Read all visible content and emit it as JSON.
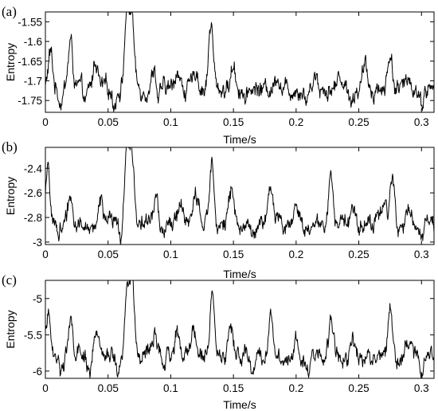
{
  "figure": {
    "background": "#ffffff",
    "line_color": "#000000"
  },
  "chart_data": [
    {
      "type": "line",
      "panel_label": "(a)",
      "xlabel": "Time/s",
      "ylabel": "Entropy",
      "xlim": [
        0,
        0.31
      ],
      "ylim": [
        -1.78,
        -1.525
      ],
      "xticks": [
        0,
        0.05,
        0.1,
        0.15,
        0.2,
        0.25,
        0.3
      ],
      "xtick_labels": [
        "0",
        "0.05",
        "0.1",
        "0.15",
        "0.2",
        "0.25",
        "0.3"
      ],
      "yticks": [
        -1.55,
        -1.6,
        -1.65,
        -1.7,
        -1.75
      ],
      "ytick_labels": [
        "-1.55",
        "-1.6",
        "-1.65",
        "-1.7",
        "-1.75"
      ],
      "grid": false,
      "baseline": -1.72,
      "noise_amplitude": 0.02,
      "peaks": [
        [
          0.004,
          -1.63
        ],
        [
          0.02,
          -1.6
        ],
        [
          0.04,
          -1.645
        ],
        [
          0.065,
          -1.525
        ],
        [
          0.069,
          -1.535
        ],
        [
          0.087,
          -1.66
        ],
        [
          0.105,
          -1.67
        ],
        [
          0.12,
          -1.67
        ],
        [
          0.132,
          -1.555
        ],
        [
          0.15,
          -1.66
        ],
        [
          0.185,
          -1.68
        ],
        [
          0.215,
          -1.68
        ],
        [
          0.235,
          -1.68
        ],
        [
          0.255,
          -1.665
        ],
        [
          0.275,
          -1.63
        ],
        [
          0.29,
          -1.685
        ]
      ],
      "troughs": [
        [
          0.012,
          -1.755
        ],
        [
          0.032,
          -1.765
        ],
        [
          0.055,
          -1.765
        ],
        [
          0.09,
          -1.77
        ],
        [
          0.16,
          -1.765
        ],
        [
          0.208,
          -1.755
        ],
        [
          0.245,
          -1.76
        ],
        [
          0.3,
          -1.765
        ]
      ]
    },
    {
      "type": "line",
      "panel_label": "(b)",
      "xlabel": "Time/s",
      "ylabel": "Entropy",
      "xlim": [
        0,
        0.31
      ],
      "ylim": [
        -3.02,
        -2.23
      ],
      "xticks": [
        0,
        0.05,
        0.1,
        0.15,
        0.2,
        0.25,
        0.3
      ],
      "xtick_labels": [
        "0",
        "0.05",
        "0.1",
        "0.15",
        "0.2",
        "0.25",
        "0.3"
      ],
      "yticks": [
        -2.4,
        -2.6,
        -2.8,
        -3
      ],
      "ytick_labels": [
        "-2.4",
        "-2.6",
        "-2.8",
        "-3"
      ],
      "grid": false,
      "baseline": -2.85,
      "noise_amplitude": 0.06,
      "peaks": [
        [
          0.002,
          -2.45
        ],
        [
          0.02,
          -2.62
        ],
        [
          0.044,
          -2.65
        ],
        [
          0.065,
          -2.28
        ],
        [
          0.069,
          -2.24
        ],
        [
          0.088,
          -2.64
        ],
        [
          0.108,
          -2.65
        ],
        [
          0.12,
          -2.58
        ],
        [
          0.133,
          -2.32
        ],
        [
          0.148,
          -2.6
        ],
        [
          0.18,
          -2.55
        ],
        [
          0.2,
          -2.67
        ],
        [
          0.228,
          -2.45
        ],
        [
          0.245,
          -2.65
        ],
        [
          0.27,
          -2.62
        ],
        [
          0.277,
          -2.47
        ],
        [
          0.29,
          -2.7
        ]
      ],
      "troughs": [
        [
          0.01,
          -2.95
        ],
        [
          0.035,
          -2.98
        ],
        [
          0.06,
          -3.0
        ],
        [
          0.095,
          -2.97
        ],
        [
          0.165,
          -2.97
        ],
        [
          0.21,
          -3.0
        ],
        [
          0.3,
          -2.98
        ]
      ]
    },
    {
      "type": "line",
      "panel_label": "(c)",
      "xlabel": "Time/s",
      "ylabel": "Entropy",
      "xlim": [
        0,
        0.31
      ],
      "ylim": [
        -6.1,
        -4.75
      ],
      "xticks": [
        0,
        0.05,
        0.1,
        0.15,
        0.2,
        0.25,
        0.3
      ],
      "xtick_labels": [
        "0",
        "0.05",
        "0.1",
        "0.15",
        "0.2",
        "0.25",
        "0.3"
      ],
      "yticks": [
        -5,
        -5.5,
        -6
      ],
      "ytick_labels": [
        "-5",
        "-5.5",
        "-6"
      ],
      "grid": false,
      "baseline": -5.8,
      "noise_amplitude": 0.1,
      "peaks": [
        [
          0.002,
          -5.2
        ],
        [
          0.02,
          -5.35
        ],
        [
          0.04,
          -5.5
        ],
        [
          0.065,
          -4.9
        ],
        [
          0.069,
          -4.75
        ],
        [
          0.087,
          -5.45
        ],
        [
          0.105,
          -5.45
        ],
        [
          0.118,
          -5.35
        ],
        [
          0.133,
          -4.85
        ],
        [
          0.148,
          -5.35
        ],
        [
          0.18,
          -5.2
        ],
        [
          0.2,
          -5.5
        ],
        [
          0.228,
          -5.3
        ],
        [
          0.245,
          -5.5
        ],
        [
          0.275,
          -5.05
        ],
        [
          0.29,
          -5.55
        ]
      ],
      "troughs": [
        [
          0.012,
          -6.0
        ],
        [
          0.035,
          -6.05
        ],
        [
          0.058,
          -6.05
        ],
        [
          0.095,
          -6.0
        ],
        [
          0.165,
          -6.05
        ],
        [
          0.21,
          -6.05
        ],
        [
          0.3,
          -6.05
        ]
      ]
    }
  ]
}
